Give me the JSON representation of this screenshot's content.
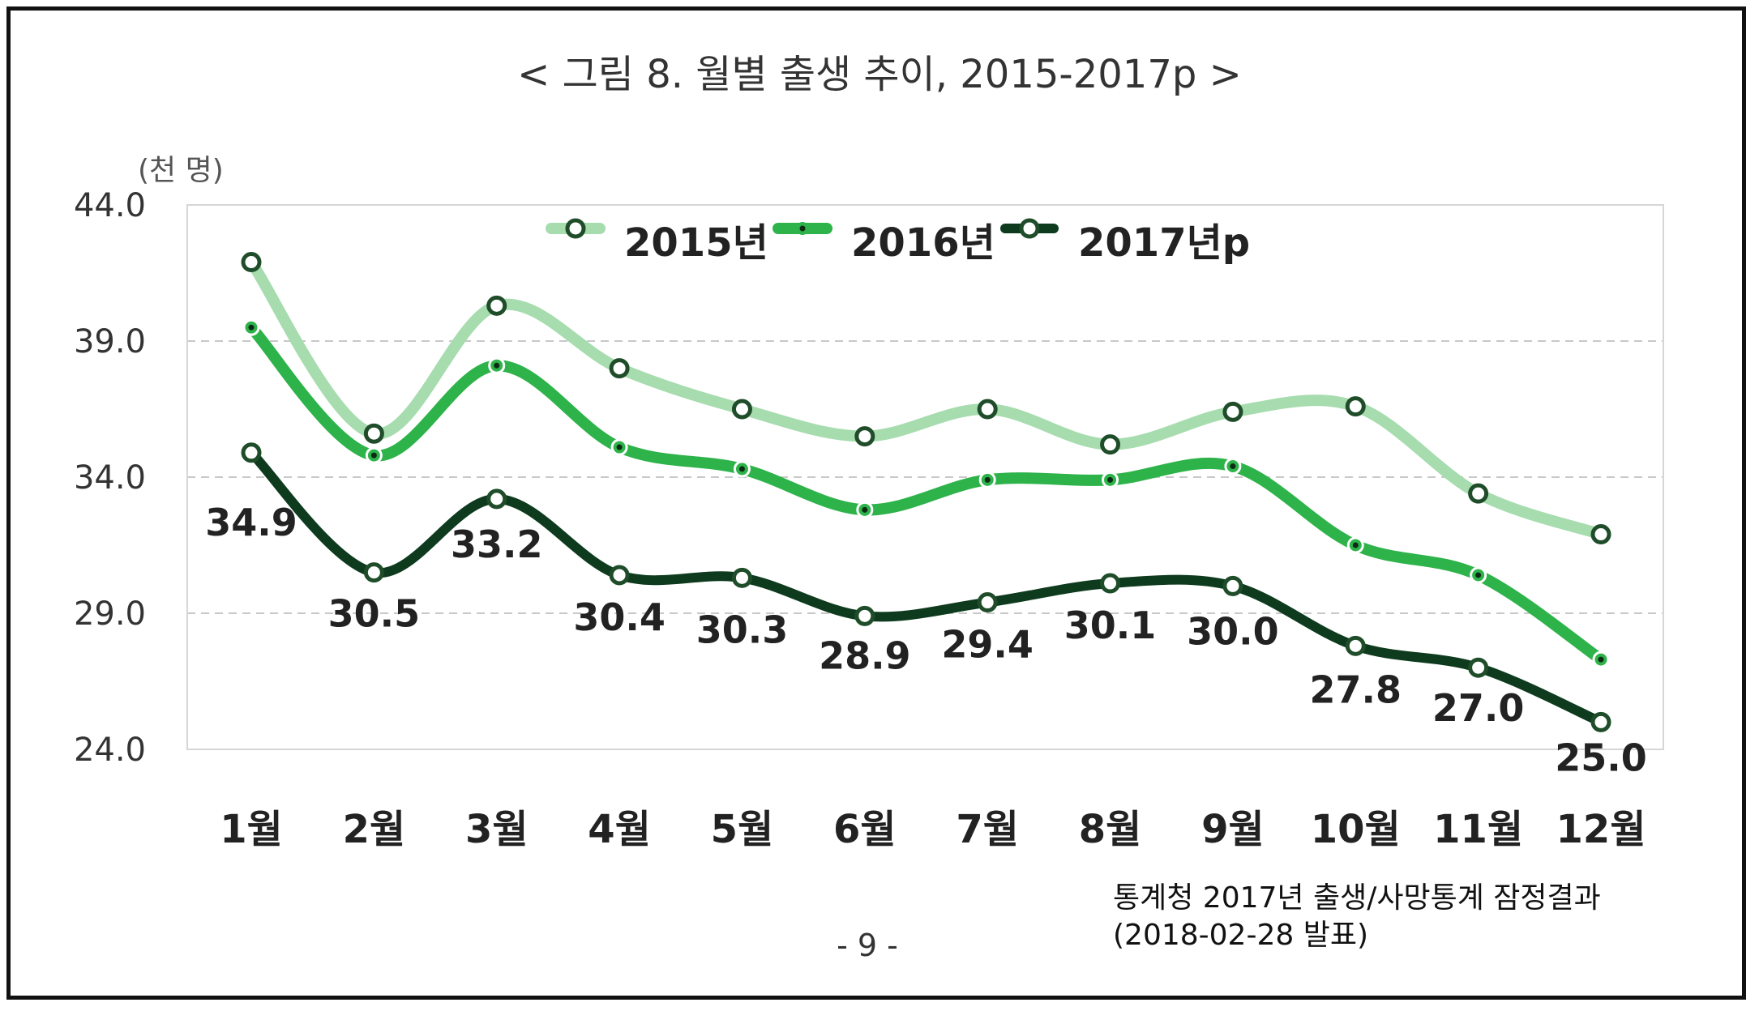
{
  "chart_data": {
    "type": "line",
    "title": "< 그림 8. 월별 출생 추이, 2015-2017p >",
    "ylabel": "(천 명)",
    "ylim": [
      24.0,
      44.0
    ],
    "yticks": [
      "44.0",
      "39.0",
      "34.0",
      "29.0",
      "24.0"
    ],
    "ytick_values": [
      44.0,
      39.0,
      34.0,
      29.0,
      24.0
    ],
    "categories": [
      "1월",
      "2월",
      "3월",
      "4월",
      "5월",
      "6월",
      "7월",
      "8월",
      "9월",
      "10월",
      "11월",
      "12월"
    ],
    "grid": "horizontal dashed",
    "legend_position": "top-center",
    "series": [
      {
        "name": "2015년",
        "color": "#a6dcae",
        "marker": "open-circle",
        "values": [
          41.9,
          35.6,
          40.3,
          38.0,
          36.5,
          35.5,
          36.5,
          35.2,
          36.4,
          36.6,
          33.4,
          31.9
        ]
      },
      {
        "name": "2016년",
        "color": "#2db34a",
        "marker": "dot",
        "values": [
          39.5,
          34.8,
          38.1,
          35.1,
          34.3,
          32.8,
          33.9,
          33.9,
          34.4,
          31.5,
          30.4,
          27.3
        ]
      },
      {
        "name": "2017년p",
        "color": "#0e3b1e",
        "marker": "open-circle",
        "values": [
          34.9,
          30.5,
          33.2,
          30.4,
          30.3,
          28.9,
          29.4,
          30.1,
          30.0,
          27.8,
          27.0,
          25.0
        ],
        "labels": [
          "34.9",
          "30.5",
          "33.2",
          "30.4",
          "30.3",
          "28.9",
          "29.4",
          "30.1",
          "30.0",
          "27.8",
          "27.0",
          "25.0"
        ]
      }
    ]
  },
  "footer": {
    "page_number": "- 9 -",
    "source_line1": "통계청 2017년 출생/사망통계 잠정결과",
    "source_line2": "(2018-02-28 발표)"
  }
}
